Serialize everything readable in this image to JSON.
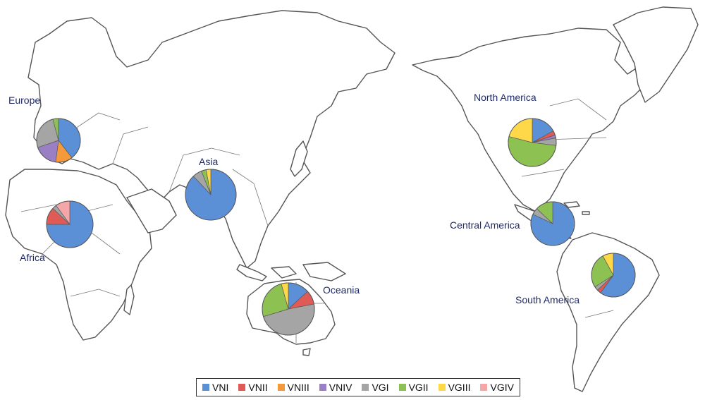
{
  "title": "",
  "colors": {
    "VNI": "#5b8fd6",
    "VNII": "#e05a56",
    "VNIII": "#f59a3b",
    "VNIV": "#9a7fc4",
    "VGI": "#a5a5a5",
    "VGII": "#8dc152",
    "VGIII": "#ffd84a",
    "VGIV": "#f4a6a8"
  },
  "legend": [
    "VNI",
    "VNII",
    "VNIII",
    "VNIV",
    "VGI",
    "VGII",
    "VGIII",
    "VGIV"
  ],
  "chart_data": {
    "type": "pie",
    "categories": [
      "VNI",
      "VNII",
      "VNIII",
      "VNIV",
      "VGI",
      "VGII",
      "VGIII",
      "VGIV"
    ],
    "series": [
      {
        "name": "Europe",
        "values": [
          38,
          0,
          12,
          17,
          25,
          4,
          0,
          0
        ]
      },
      {
        "name": "Africa",
        "values": [
          75,
          12,
          0,
          0,
          3,
          0,
          0,
          10
        ]
      },
      {
        "name": "Asia",
        "values": [
          88,
          0,
          0,
          0,
          6,
          3,
          3,
          0
        ]
      },
      {
        "name": "Oceania",
        "values": [
          12,
          8,
          0,
          0,
          44,
          23,
          4,
          0
        ]
      },
      {
        "name": "North America",
        "values": [
          17,
          3,
          0,
          2,
          5,
          52,
          21,
          0
        ]
      },
      {
        "name": "Central America",
        "values": [
          82,
          0,
          0,
          0,
          5,
          13,
          0,
          0
        ]
      },
      {
        "name": "South America",
        "values": [
          60,
          3,
          0,
          0,
          3,
          26,
          8,
          0
        ]
      }
    ]
  }
}
